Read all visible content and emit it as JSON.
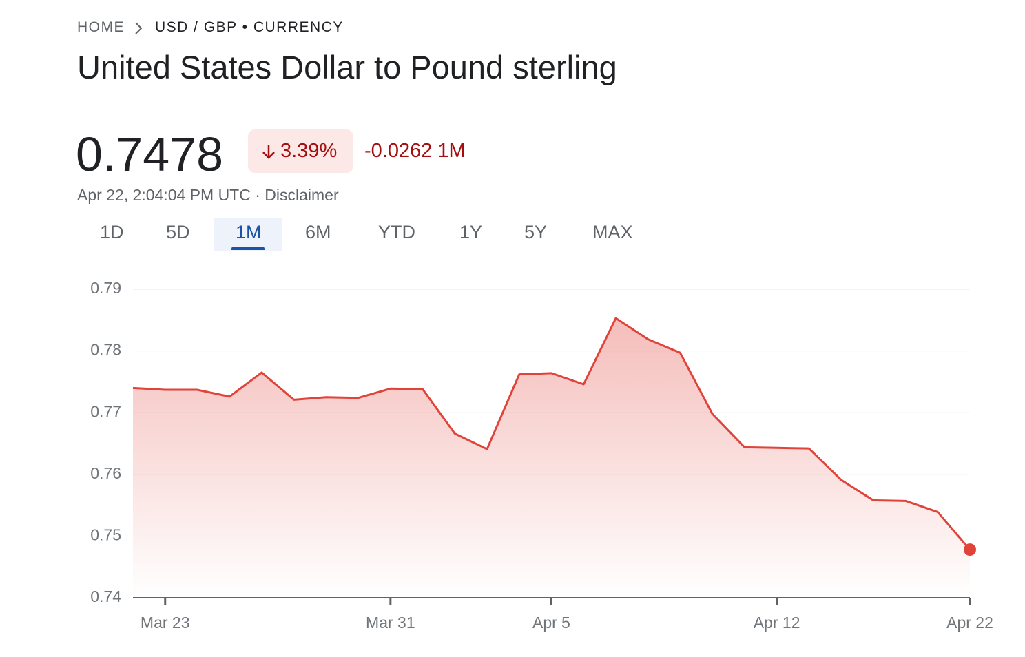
{
  "header": {
    "breadcrumb_home": "HOME",
    "breadcrumb_current": "USD / GBP • CURRENCY",
    "title": "United States Dollar to Pound sterling"
  },
  "quote": {
    "price": "0.7478",
    "change_percent": "3.39%",
    "change_detail": "-0.0262 1M",
    "timestamp": "Apr 22, 2:04:04 PM UTC",
    "disclaimer": "Disclaimer"
  },
  "tabs": {
    "items": [
      "1D",
      "5D",
      "1M",
      "6M",
      "YTD",
      "1Y",
      "5Y",
      "MAX"
    ],
    "active": 2
  },
  "chart_data": {
    "type": "line",
    "color": "#e0433a",
    "grid": true,
    "categories": [
      null,
      "Mar 23",
      null,
      null,
      null,
      null,
      null,
      null,
      "Mar 31",
      null,
      null,
      null,
      null,
      "Apr 5",
      null,
      null,
      null,
      null,
      null,
      null,
      "Apr 12",
      null,
      null,
      null,
      null,
      null,
      "Apr 22"
    ],
    "series": [
      {
        "name": "USD / GBP",
        "color": "#e0433a",
        "values": [
          0.774,
          0.7737,
          0.7737,
          0.7726,
          0.7765,
          0.7721,
          0.7725,
          0.7724,
          0.7739,
          0.7738,
          0.7666,
          0.7641,
          0.7762,
          0.7764,
          0.7746,
          0.7853,
          0.7819,
          0.7797,
          0.7698,
          0.7644,
          0.7643,
          0.7642,
          0.7591,
          0.7558,
          0.7557,
          0.7539,
          0.7478
        ]
      }
    ],
    "ylim": [
      0.74,
      0.79
    ],
    "yticks": [
      0.74,
      0.75,
      0.76,
      0.77,
      0.78,
      0.79
    ]
  }
}
